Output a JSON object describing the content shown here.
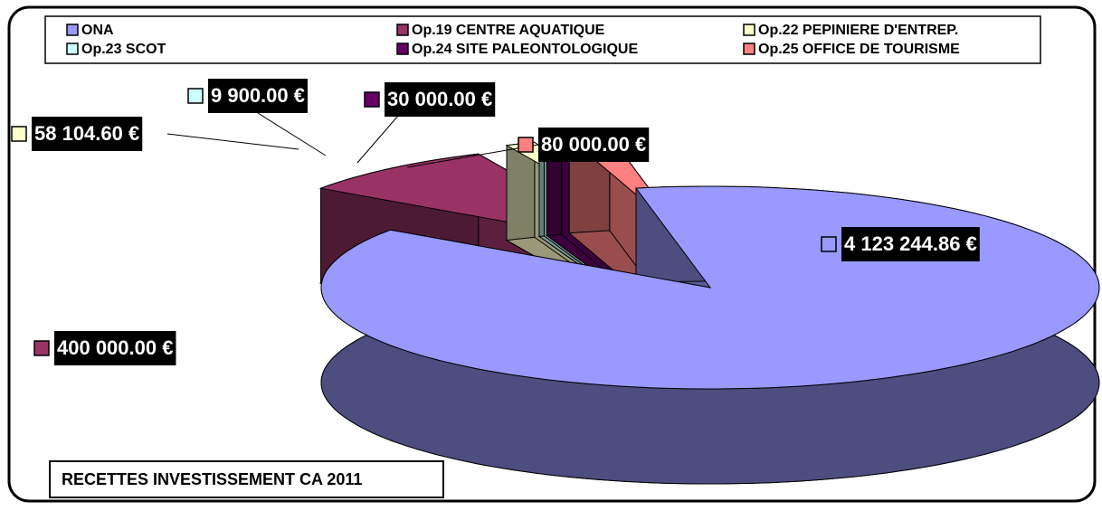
{
  "chart_data": {
    "type": "pie3d",
    "title": "RECETTES INVESTISSEMENT  CA 2011",
    "categories": [
      "ONA",
      "Op.19 CENTRE AQUATIQUE",
      "Op.22 PEPINIERE D'ENTREP.",
      "Op.23 SCOT",
      "Op.24 SITE PALEONTOLOGIQUE",
      "Op.25 OFFICE DE TOURISME"
    ],
    "values": [
      4123244.86,
      400000,
      58104.6,
      9900,
      30000,
      80000
    ],
    "value_labels": [
      "4 123 244.86 €",
      "400 000.00 €",
      "58 104.60 €",
      "9 900.00 €",
      "30 000.00 €",
      "80 000.00 €"
    ],
    "colors": [
      "#9999ff",
      "#993366",
      "#ffffcc",
      "#ccffff",
      "#660066",
      "#ff8080"
    ],
    "legend": "top"
  }
}
